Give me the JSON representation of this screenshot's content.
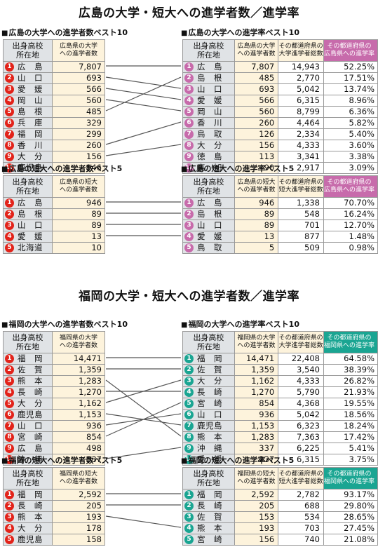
{
  "hiroshima": {
    "title": "広島の大学・短大への進学者数／進学率",
    "univ_count": {
      "label": "広島の大学への進学者数ベスト10",
      "headers": [
        "出身高校\n所在地",
        "広島県の大学\nへの進学者数"
      ],
      "rows": [
        [
          "広　島",
          "7,807"
        ],
        [
          "山　口",
          "693"
        ],
        [
          "愛　媛",
          "566"
        ],
        [
          "岡　山",
          "560"
        ],
        [
          "島　根",
          "485"
        ],
        [
          "兵　庫",
          "329"
        ],
        [
          "福　岡",
          "299"
        ],
        [
          "香　川",
          "260"
        ],
        [
          "大　分",
          "156"
        ],
        [
          "鹿児島",
          "146"
        ]
      ]
    },
    "univ_rate": {
      "label": "広島の大学への進学率ベスト10",
      "headers": [
        "出身高校\n所在地",
        "広島県の大学\nへの進学者数",
        "その都道府県の\n大学進学者総数",
        "その都道府県の\n広島県への進学率"
      ],
      "rows": [
        [
          "広　島",
          "7,807",
          "14,943",
          "52.25%"
        ],
        [
          "島　根",
          "485",
          "2,770",
          "17.51%"
        ],
        [
          "山　口",
          "693",
          "5,042",
          "13.74%"
        ],
        [
          "愛　媛",
          "566",
          "6,315",
          "8.96%"
        ],
        [
          "岡　山",
          "560",
          "8,799",
          "6.36%"
        ],
        [
          "香　川",
          "260",
          "4,464",
          "5.82%"
        ],
        [
          "鳥　取",
          "126",
          "2,334",
          "5.40%"
        ],
        [
          "大　分",
          "156",
          "4,333",
          "3.60%"
        ],
        [
          "徳　島",
          "113",
          "3,341",
          "3.38%"
        ],
        [
          "高　知",
          "90",
          "2,917",
          "3.09%"
        ]
      ]
    },
    "jc_count": {
      "label": "広島の短大への進学者数ベスト5",
      "headers": [
        "出身高校\n所在地",
        "広島県の短大\nへの進学者数"
      ],
      "rows": [
        [
          "広　島",
          "946"
        ],
        [
          "島　根",
          "89"
        ],
        [
          "山　口",
          "89"
        ],
        [
          "愛　媛",
          "13"
        ],
        [
          "北海道",
          "10"
        ]
      ]
    },
    "jc_rate": {
      "label": "広島の短大への進学率ベスト5",
      "headers": [
        "出身高校\n所在地",
        "広島県の短大\nへの進学者数",
        "その都道府県の\n短大進学者総数",
        "その都道府県の\n広島県への進学率"
      ],
      "rows": [
        [
          "広　島",
          "946",
          "1,338",
          "70.70%"
        ],
        [
          "島　根",
          "89",
          "548",
          "16.24%"
        ],
        [
          "山　口",
          "89",
          "701",
          "12.70%"
        ],
        [
          "愛　媛",
          "13",
          "877",
          "1.48%"
        ],
        [
          "鳥　取",
          "5",
          "509",
          "0.98%"
        ]
      ]
    }
  },
  "fukuoka": {
    "title": "福岡の大学・短大への進学者数／進学率",
    "univ_count": {
      "label": "福岡の大学への進学者数ベスト10",
      "headers": [
        "出身高校\n所在地",
        "福岡県の大学\nへの進学者数"
      ],
      "rows": [
        [
          "福　岡",
          "14,471"
        ],
        [
          "佐　賀",
          "1,359"
        ],
        [
          "熊　本",
          "1,283"
        ],
        [
          "長　崎",
          "1,270"
        ],
        [
          "大　分",
          "1,162"
        ],
        [
          "鹿児島",
          "1,153"
        ],
        [
          "山　口",
          "936"
        ],
        [
          "宮　崎",
          "854"
        ],
        [
          "広　島",
          "498"
        ],
        [
          "沖　縄",
          "337"
        ]
      ]
    },
    "univ_rate": {
      "label": "福岡の大学への進学率ベスト10",
      "headers": [
        "出身高校\n所在地",
        "福岡県の大学\nへの進学者数",
        "その都道府県の\n大学進学者総数",
        "その都道府県の\n福岡県への進学率"
      ],
      "rows": [
        [
          "福　岡",
          "14,471",
          "22,408",
          "64.58%"
        ],
        [
          "佐　賀",
          "1,359",
          "3,540",
          "38.39%"
        ],
        [
          "大　分",
          "1,162",
          "4,333",
          "26.82%"
        ],
        [
          "長　崎",
          "1,270",
          "5,790",
          "21.93%"
        ],
        [
          "宮　崎",
          "854",
          "4,368",
          "19.55%"
        ],
        [
          "山　口",
          "936",
          "5,042",
          "18.56%"
        ],
        [
          "鹿児島",
          "1,153",
          "6,323",
          "18.24%"
        ],
        [
          "熊　本",
          "1,283",
          "7,363",
          "17.42%"
        ],
        [
          "沖　縄",
          "337",
          "6,225",
          "5.41%"
        ],
        [
          "愛　媛",
          "237",
          "6,315",
          "3.75%"
        ]
      ]
    },
    "jc_count": {
      "label": "福岡の短大への進学者数ベスト5",
      "headers": [
        "出身高校\n所在地",
        "福岡県の短大\nへの進学者数"
      ],
      "rows": [
        [
          "福　岡",
          "2,592"
        ],
        [
          "長　崎",
          "205"
        ],
        [
          "熊　本",
          "193"
        ],
        [
          "大　分",
          "178"
        ],
        [
          "鹿児島",
          "158"
        ]
      ]
    },
    "jc_rate": {
      "label": "福岡の短大への進学率ベスト5",
      "headers": [
        "出身高校\n所在地",
        "福岡県の短大\nへの進学者数",
        "その都道府県の\n短大進学者総数",
        "その都道府県の\n福岡県への進学率"
      ],
      "rows": [
        [
          "福　岡",
          "2,592",
          "2,782",
          "93.17%"
        ],
        [
          "長　崎",
          "205",
          "688",
          "29.80%"
        ],
        [
          "佐　賀",
          "153",
          "534",
          "28.65%"
        ],
        [
          "熊　本",
          "193",
          "703",
          "27.45%"
        ],
        [
          "宮　崎",
          "156",
          "740",
          "21.08%"
        ]
      ]
    }
  }
}
